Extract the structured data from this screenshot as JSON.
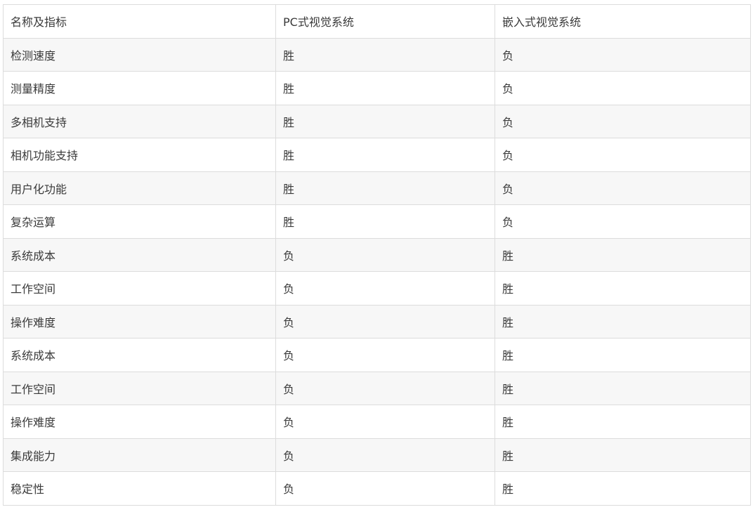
{
  "table": {
    "headers": [
      "名称及指标",
      "PC式视觉系统",
      "嵌入式视觉系统"
    ],
    "rows": [
      [
        "检测速度",
        "胜",
        "负"
      ],
      [
        "测量精度",
        "胜",
        "负"
      ],
      [
        "多相机支持",
        "胜",
        "负"
      ],
      [
        "相机功能支持",
        "胜",
        "负"
      ],
      [
        "用户化功能",
        "胜",
        "负"
      ],
      [
        "复杂运算",
        "胜",
        "负"
      ],
      [
        "系统成本",
        "负",
        "胜"
      ],
      [
        "工作空间",
        "负",
        "胜"
      ],
      [
        "操作难度",
        "负",
        "胜"
      ],
      [
        "系统成本",
        "负",
        "胜"
      ],
      [
        "工作空间",
        "负",
        "胜"
      ],
      [
        "操作难度",
        "负",
        "胜"
      ],
      [
        "集成能力",
        "负",
        "胜"
      ],
      [
        "稳定性",
        "负",
        "胜"
      ]
    ]
  }
}
